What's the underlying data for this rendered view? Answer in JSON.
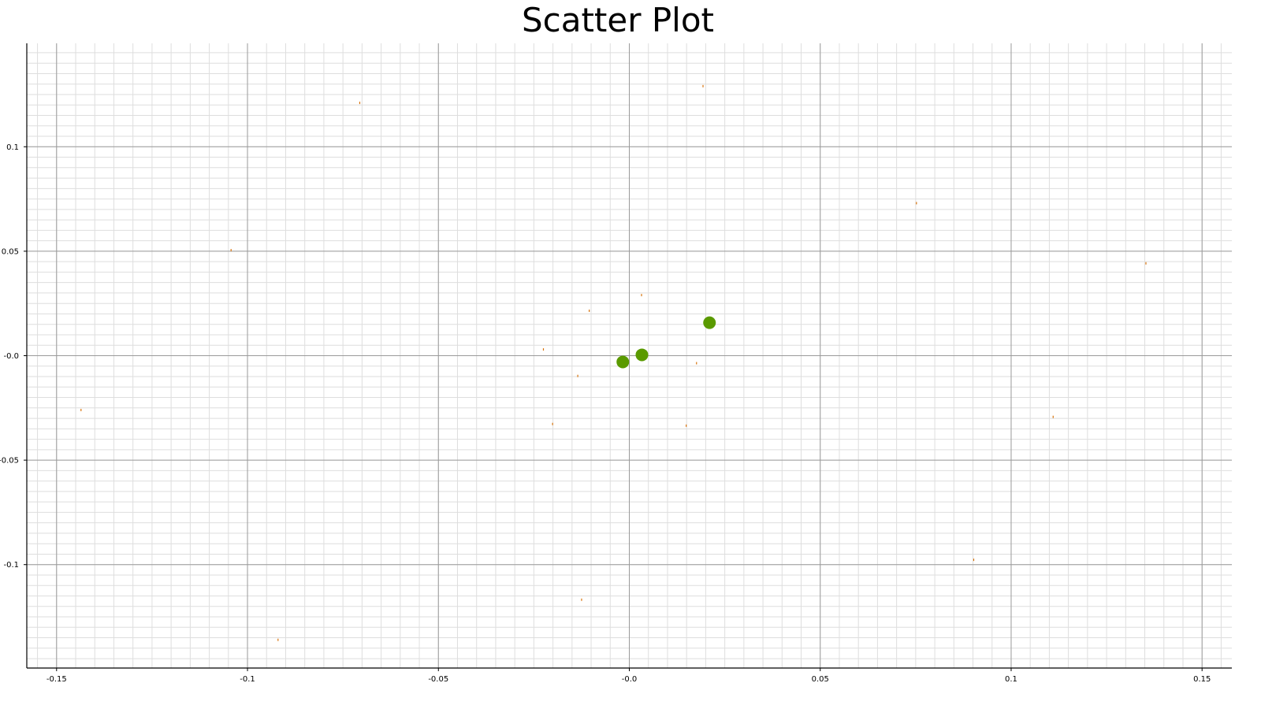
{
  "chart_data": {
    "type": "scatter",
    "title": "Scatter Plot",
    "xlabel": "",
    "ylabel": "",
    "xlim": [
      -0.1578,
      0.1578
    ],
    "ylim": [
      -0.1495,
      0.1495
    ],
    "grid": true,
    "minor_grid": true,
    "x_ticks": [
      -0.15,
      -0.1,
      -0.05,
      0.0,
      0.05,
      0.1,
      0.15
    ],
    "x_tick_labels": [
      "-0.15",
      "-0.1",
      "-0.05",
      "-0.0",
      "0.05",
      "0.1",
      "0.15"
    ],
    "y_ticks": [
      0.1,
      0.05,
      0.0,
      -0.05,
      -0.1
    ],
    "y_tick_labels": [
      "0.1",
      "0.05",
      "-0.0",
      "-0.05",
      "-0.1"
    ],
    "colors": {
      "large_point": "#5a9a00",
      "small_point": "#d9750e",
      "major_grid": "#9a9a9a",
      "minor_grid": "#dedede",
      "axis": "#000000"
    },
    "series": [
      {
        "marker": "large",
        "points": [
          {
            "x": -0.0017,
            "y": -0.003
          },
          {
            "x": 0.0033,
            "y": 0.0004
          },
          {
            "x": 0.021,
            "y": 0.0158
          }
        ]
      },
      {
        "marker": "small",
        "points": [
          {
            "x": 0.0193,
            "y": 0.129
          },
          {
            "x": -0.0706,
            "y": 0.121
          },
          {
            "x": 0.0752,
            "y": 0.073
          },
          {
            "x": -0.1043,
            "y": 0.0505
          },
          {
            "x": 0.1353,
            "y": 0.0442
          },
          {
            "x": 0.0032,
            "y": 0.029
          },
          {
            "x": -0.0105,
            "y": 0.0215
          },
          {
            "x": -0.0225,
            "y": 0.003
          },
          {
            "x": 0.0176,
            "y": -0.0036
          },
          {
            "x": -0.0135,
            "y": -0.0097
          },
          {
            "x": -0.1436,
            "y": -0.026
          },
          {
            "x": 0.111,
            "y": -0.0293
          },
          {
            "x": -0.0201,
            "y": -0.0327
          },
          {
            "x": 0.0149,
            "y": -0.0335
          },
          {
            "x": 0.0902,
            "y": -0.0977
          },
          {
            "x": -0.0125,
            "y": -0.1168
          },
          {
            "x": -0.092,
            "y": -0.136
          }
        ]
      }
    ]
  }
}
